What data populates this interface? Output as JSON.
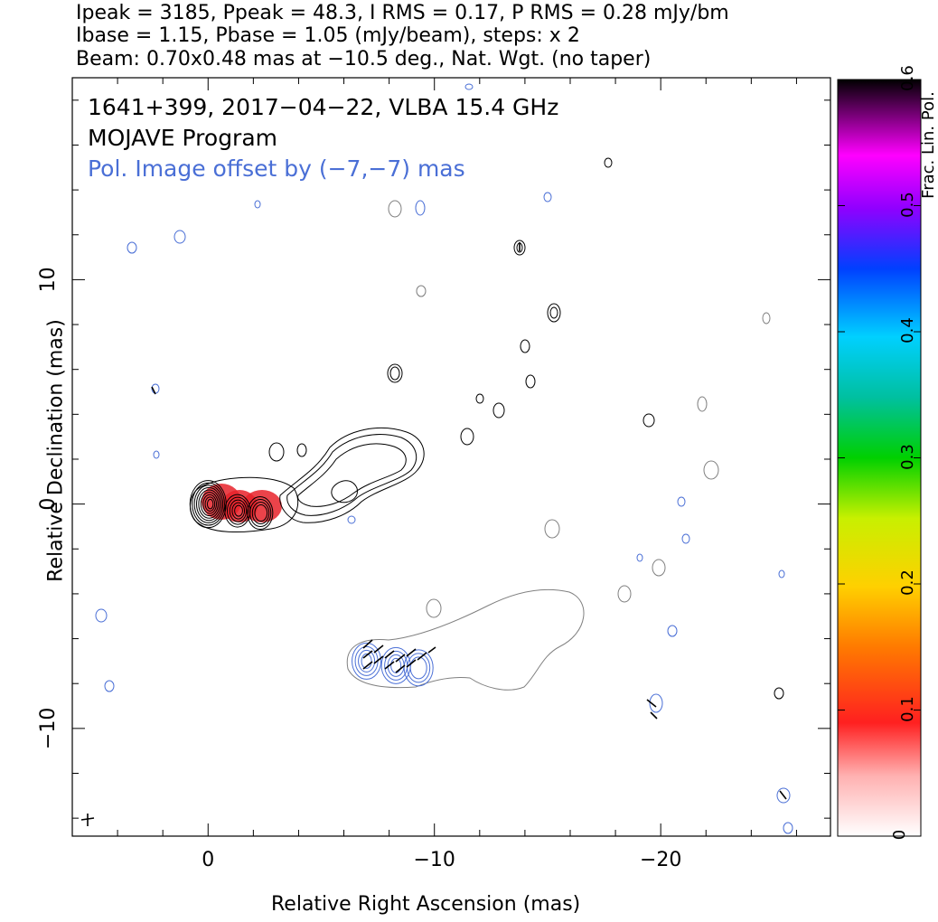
{
  "header": {
    "line1": "Ipeak = 3185, Ppeak = 48.3, I RMS = 0.17, P RMS = 0.28 mJy/bm",
    "line2": "Ibase = 1.15, Pbase = 1.05 (mJy/beam), steps: x 2",
    "line3": "Beam: 0.70x0.48 mas at −10.5 deg., Nat. Wgt. (no taper)"
  },
  "annotations": {
    "source": "1641+399, 2017−04−22, VLBA 15.4 GHz",
    "program": "MOJAVE Program",
    "offset_note": "Pol. Image offset by (−7,−7) mas"
  },
  "chart_data": {
    "type": "contour",
    "xlabel": "Relative Right Ascension (mas)",
    "ylabel": "Relative Declination (mas)",
    "xlim": [
      6,
      -27.5
    ],
    "ylim": [
      -14.8,
      19
    ],
    "x_ticks": [
      0,
      -10,
      -20
    ],
    "x_tick_labels": [
      "0",
      "−10",
      "−20"
    ],
    "y_ticks": [
      -10,
      0,
      10
    ],
    "y_tick_labels": [
      "−10",
      "0",
      "10"
    ],
    "colorbar": {
      "label": "Frac. Lin. Pol.",
      "range": [
        0,
        0.6
      ],
      "ticks": [
        0,
        0.1,
        0.2,
        0.3,
        0.4,
        0.5,
        0.6
      ],
      "tick_labels": [
        "0",
        "0.1",
        "0.2",
        "0.3",
        "0.4",
        "0.5",
        "0.6"
      ]
    },
    "core_components": [
      {
        "x": 0,
        "y": 0,
        "levels": 9
      },
      {
        "x": -1.3,
        "y": -0.3,
        "levels": 5
      },
      {
        "x": -2.3,
        "y": -0.4,
        "levels": 4
      }
    ],
    "pol_components": [
      {
        "x": -7,
        "y": -7,
        "levels": 4
      },
      {
        "x": -8.3,
        "y": -7.2,
        "levels": 4
      },
      {
        "x": -9.3,
        "y": -7.3,
        "levels": 3
      }
    ],
    "frac_pol_peak": 0.08,
    "colors": {
      "stokes_i": "#000000",
      "pol": "#4a6fd6",
      "total_offset": "#808080",
      "frac_pol": "#e8222a"
    }
  }
}
